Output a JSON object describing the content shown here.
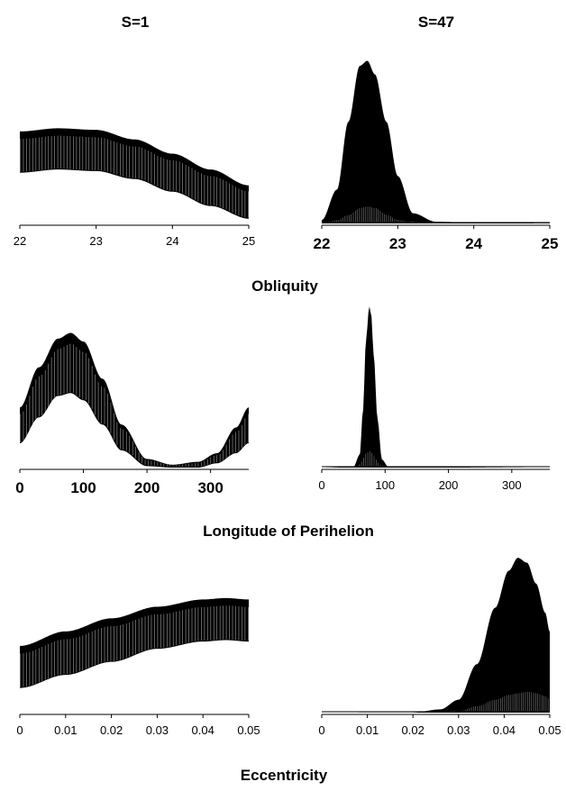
{
  "column_titles": [
    "S=1",
    "S=47"
  ],
  "row_labels": [
    "Obliquity",
    "Longitude of Perihelion",
    "Eccentricity"
  ],
  "chart_data": [
    {
      "type": "area",
      "panel": "S=1 / Obliquity",
      "row": 0,
      "col": 0,
      "xlabel": "Obliquity",
      "xlim": [
        22,
        25
      ],
      "xticks": [
        "22",
        "23",
        "24",
        "25"
      ],
      "tick_style": "normal",
      "ylim": [
        0,
        1
      ],
      "shape": "band",
      "x": [
        22,
        22.5,
        23,
        23.5,
        24,
        24.5,
        25
      ],
      "upper": [
        0.58,
        0.6,
        0.59,
        0.53,
        0.44,
        0.34,
        0.24
      ],
      "lower": [
        0.32,
        0.34,
        0.33,
        0.28,
        0.2,
        0.11,
        0.03
      ]
    },
    {
      "type": "area",
      "panel": "S=47 / Obliquity",
      "row": 0,
      "col": 1,
      "xlabel": "Obliquity",
      "xlim": [
        22,
        25
      ],
      "xticks": [
        "22",
        "23",
        "24",
        "25"
      ],
      "tick_style": "bold",
      "ylim": [
        0,
        1
      ],
      "shape": "peak",
      "x": [
        22,
        22.2,
        22.35,
        22.5,
        22.6,
        22.7,
        22.85,
        23,
        23.2,
        23.5,
        24,
        25
      ],
      "upper": [
        0.02,
        0.2,
        0.6,
        0.93,
        0.96,
        0.88,
        0.6,
        0.28,
        0.06,
        0.01,
        0.005,
        0.002
      ],
      "inner": [
        0.0,
        0.02,
        0.05,
        0.09,
        0.1,
        0.09,
        0.05,
        0.02,
        0.005,
        0,
        0,
        0
      ]
    },
    {
      "type": "area",
      "panel": "S=1 / Longitude of Perihelion",
      "row": 1,
      "col": 0,
      "xlabel": "Longitude of Perihelion",
      "xlim": [
        0,
        360
      ],
      "xticks": [
        "0",
        "100",
        "200",
        "300"
      ],
      "tick_values": [
        0,
        100,
        200,
        300
      ],
      "tick_style": "bold",
      "ylim": [
        0,
        1
      ],
      "shape": "band",
      "x": [
        0,
        30,
        60,
        80,
        100,
        130,
        160,
        200,
        240,
        280,
        310,
        340,
        360
      ],
      "upper": [
        0.42,
        0.7,
        0.9,
        0.94,
        0.88,
        0.62,
        0.3,
        0.06,
        0.02,
        0.04,
        0.1,
        0.28,
        0.42
      ],
      "lower": [
        0.17,
        0.35,
        0.5,
        0.52,
        0.47,
        0.3,
        0.12,
        0.01,
        0.0,
        0.0,
        0.03,
        0.1,
        0.17
      ]
    },
    {
      "type": "area",
      "panel": "S=47 / Longitude of Perihelion",
      "row": 1,
      "col": 1,
      "xlabel": "Longitude of Perihelion",
      "xlim": [
        0,
        360
      ],
      "xticks": [
        "0",
        "100",
        "200",
        "300"
      ],
      "tick_values": [
        0,
        100,
        200,
        300
      ],
      "tick_style": "normal",
      "ylim": [
        0,
        1
      ],
      "shape": "peak",
      "x": [
        0,
        50,
        60,
        65,
        70,
        75,
        78,
        82,
        88,
        95,
        105,
        360
      ],
      "upper": [
        0,
        0.005,
        0.08,
        0.35,
        0.8,
        1.0,
        0.95,
        0.7,
        0.3,
        0.05,
        0.005,
        0
      ],
      "inner": [
        0,
        0,
        0.02,
        0.06,
        0.09,
        0.1,
        0.09,
        0.07,
        0.03,
        0.005,
        0,
        0
      ]
    },
    {
      "type": "area",
      "panel": "S=1 / Eccentricity",
      "row": 2,
      "col": 0,
      "xlabel": "Eccentricity",
      "xlim": [
        0,
        0.05
      ],
      "xticks": [
        "0",
        "0.01",
        "0.02",
        "0.03",
        "0.04",
        "0.05"
      ],
      "tick_style": "normal",
      "ylim": [
        0,
        1
      ],
      "shape": "band",
      "x": [
        0,
        0.01,
        0.02,
        0.03,
        0.04,
        0.045,
        0.05
      ],
      "upper": [
        0.46,
        0.56,
        0.65,
        0.73,
        0.78,
        0.79,
        0.78
      ],
      "lower": [
        0.17,
        0.26,
        0.35,
        0.44,
        0.49,
        0.5,
        0.49
      ]
    },
    {
      "type": "area",
      "panel": "S=47 / Eccentricity",
      "row": 2,
      "col": 1,
      "xlabel": "Eccentricity",
      "xlim": [
        0,
        0.05
      ],
      "xticks": [
        "0",
        "0.01",
        "0.02",
        "0.03",
        "0.04",
        "0.05"
      ],
      "tick_style": "normal",
      "ylim": [
        0,
        1
      ],
      "shape": "peak",
      "x": [
        0,
        0.02,
        0.026,
        0.03,
        0.034,
        0.038,
        0.041,
        0.043,
        0.045,
        0.047,
        0.049,
        0.05
      ],
      "upper": [
        0,
        0.001,
        0.02,
        0.08,
        0.3,
        0.65,
        0.88,
        0.96,
        0.93,
        0.8,
        0.62,
        0.5
      ],
      "inner": [
        0,
        0,
        0,
        0.01,
        0.04,
        0.08,
        0.11,
        0.12,
        0.13,
        0.12,
        0.1,
        0.08
      ]
    }
  ]
}
